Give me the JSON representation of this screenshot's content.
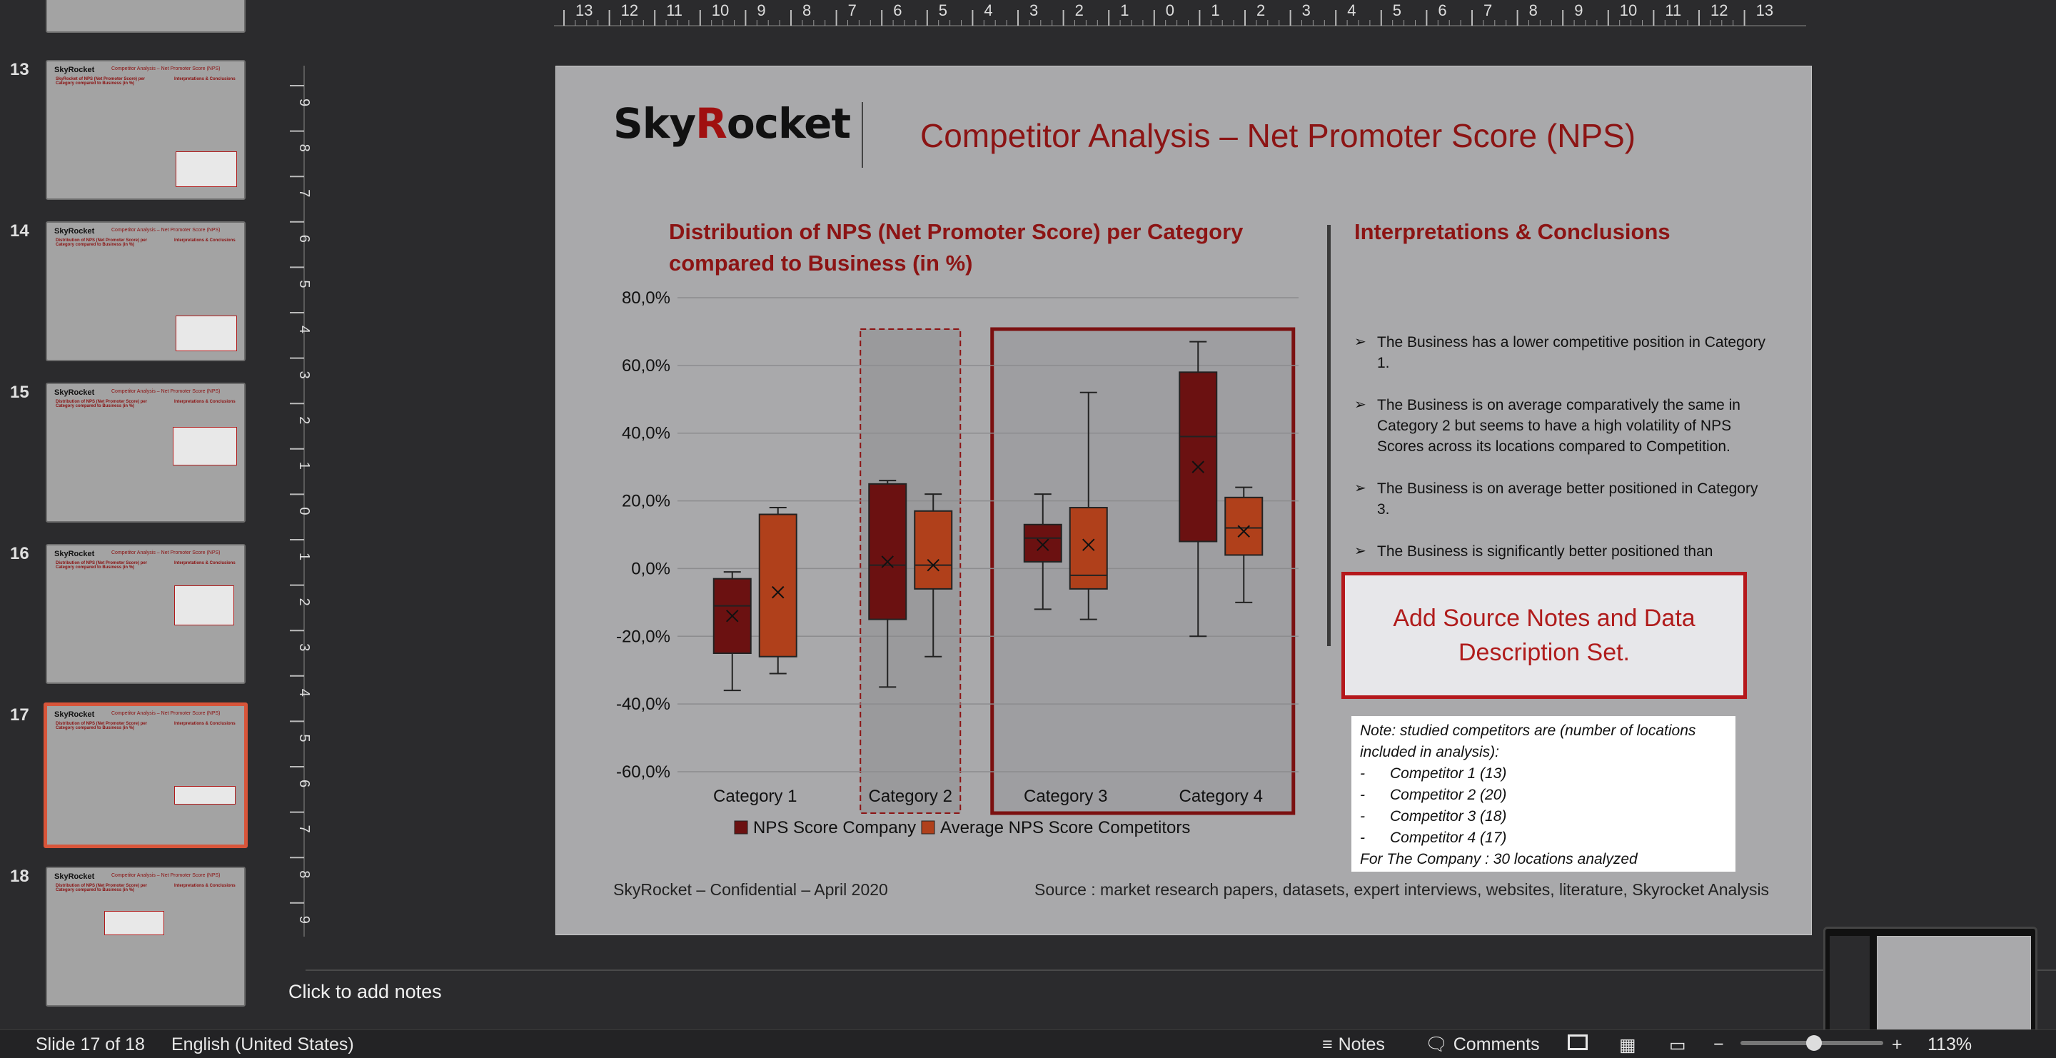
{
  "thumbnails": [
    {
      "num": "",
      "title": "",
      "partial": true
    },
    {
      "num": "13",
      "title": "Competitor Analysis – Net Promoter Score (NPS)"
    },
    {
      "num": "14",
      "title": "Competitor Analysis – Net Promoter Score (NPS)"
    },
    {
      "num": "15",
      "title": "Competitor Analysis – Net Promoter Score (NPS)"
    },
    {
      "num": "16",
      "title": "Competitor Analysis – Net Promoter Score (NPS)"
    },
    {
      "num": "17",
      "title": "Competitor Analysis – Net Promoter Score (NPS)",
      "active": true
    },
    {
      "num": "18",
      "title": "Competitor Analysis – Net Promoter Score (NPS)"
    }
  ],
  "ruler": {
    "top_ticks": [
      "13",
      "12",
      "11",
      "10",
      "9",
      "8",
      "7",
      "6",
      "5",
      "4",
      "3",
      "2",
      "1",
      "0",
      "1",
      "2",
      "3",
      "4",
      "5",
      "6",
      "7",
      "8",
      "9",
      "10",
      "11",
      "12",
      "13"
    ],
    "left_ticks": [
      "9",
      "8",
      "7",
      "6",
      "5",
      "4",
      "3",
      "2",
      "1",
      "0",
      "1",
      "2",
      "3",
      "4",
      "5",
      "6",
      "7",
      "8",
      "9"
    ]
  },
  "slide": {
    "logo": {
      "part1": "Sky",
      "part2": "R",
      "part3": "ocket"
    },
    "title": "Competitor Analysis – Net Promoter Score (NPS)",
    "chart_title": "Distribution of NPS (Net Promoter Score) per Category compared to Business (in %)",
    "interp_title": "Interpretations & Conclusions",
    "bullets": [
      "The Business has a lower competitive position in Category 1.",
      "The Business is on average comparatively the same in Category 2 but seems to have a high volatility of NPS Scores across its locations compared to Competition.",
      "The Business is on average better positioned in Category 3.",
      "The Business is significantly better positioned than"
    ],
    "source_box": "Add Source Notes and Data Description Set.",
    "note": {
      "line1": "Note: studied competitors are (number of locations included in analysis):",
      "items": [
        "Competitor 1 (13)",
        "Competitor 2 (20)",
        "Competitor 3 (18)",
        "Competitor 4 (17)"
      ],
      "last": "For The Company : 30 locations analyzed"
    },
    "footer_left": "SkyRocket – Confidential – April 2020",
    "footer_right": "Source : market research papers, datasets, expert interviews, websites, literature, Skyrocket Analysis"
  },
  "colors": {
    "company": "#6b1111",
    "competitors": "#b0401b",
    "accent": "#8c1414"
  },
  "notes_placeholder": "Click to add notes",
  "status": {
    "slide_info": "Slide 17 of 18",
    "language": "English (United States)",
    "notes_btn": "Notes",
    "comments_btn": "Comments",
    "zoom": "113%"
  },
  "chart_data": {
    "type": "box",
    "categories": [
      "Category 1",
      "Category 2",
      "Category 3",
      "Category 4"
    ],
    "y_ticks": [
      "80,0%",
      "60,0%",
      "40,0%",
      "20,0%",
      "0,0%",
      "-20,0%",
      "-40,0%",
      "-60,0%"
    ],
    "ylim": [
      -60,
      80
    ],
    "legend": [
      "NPS Score Company",
      "Average NPS Score Competitors"
    ],
    "series": [
      {
        "name": "NPS Score Company",
        "boxes": [
          {
            "min": -36,
            "q1": -25,
            "median": -11,
            "q3": -3,
            "max": -1,
            "mean": -14
          },
          {
            "min": -35,
            "q1": -15,
            "median": 1,
            "q3": 25,
            "max": 26,
            "mean": 2
          },
          {
            "min": -12,
            "q1": 2,
            "median": 9,
            "q3": 13,
            "max": 22,
            "mean": 7
          },
          {
            "min": -20,
            "q1": 8,
            "median": 39,
            "q3": 58,
            "max": 67,
            "mean": 30
          }
        ]
      },
      {
        "name": "Average NPS Score Competitors",
        "boxes": [
          {
            "min": -31,
            "q1": -26,
            "median": 16,
            "q3": 16,
            "max": 18,
            "mean": -7
          },
          {
            "min": -26,
            "q1": -6,
            "median": 1,
            "q3": 17,
            "max": 22,
            "mean": 1
          },
          {
            "min": -15,
            "q1": -6,
            "median": -2,
            "q3": 18,
            "max": 52,
            "mean": 7
          },
          {
            "min": -10,
            "q1": 4,
            "median": 12,
            "q3": 21,
            "max": 24,
            "mean": 11
          }
        ]
      }
    ]
  }
}
